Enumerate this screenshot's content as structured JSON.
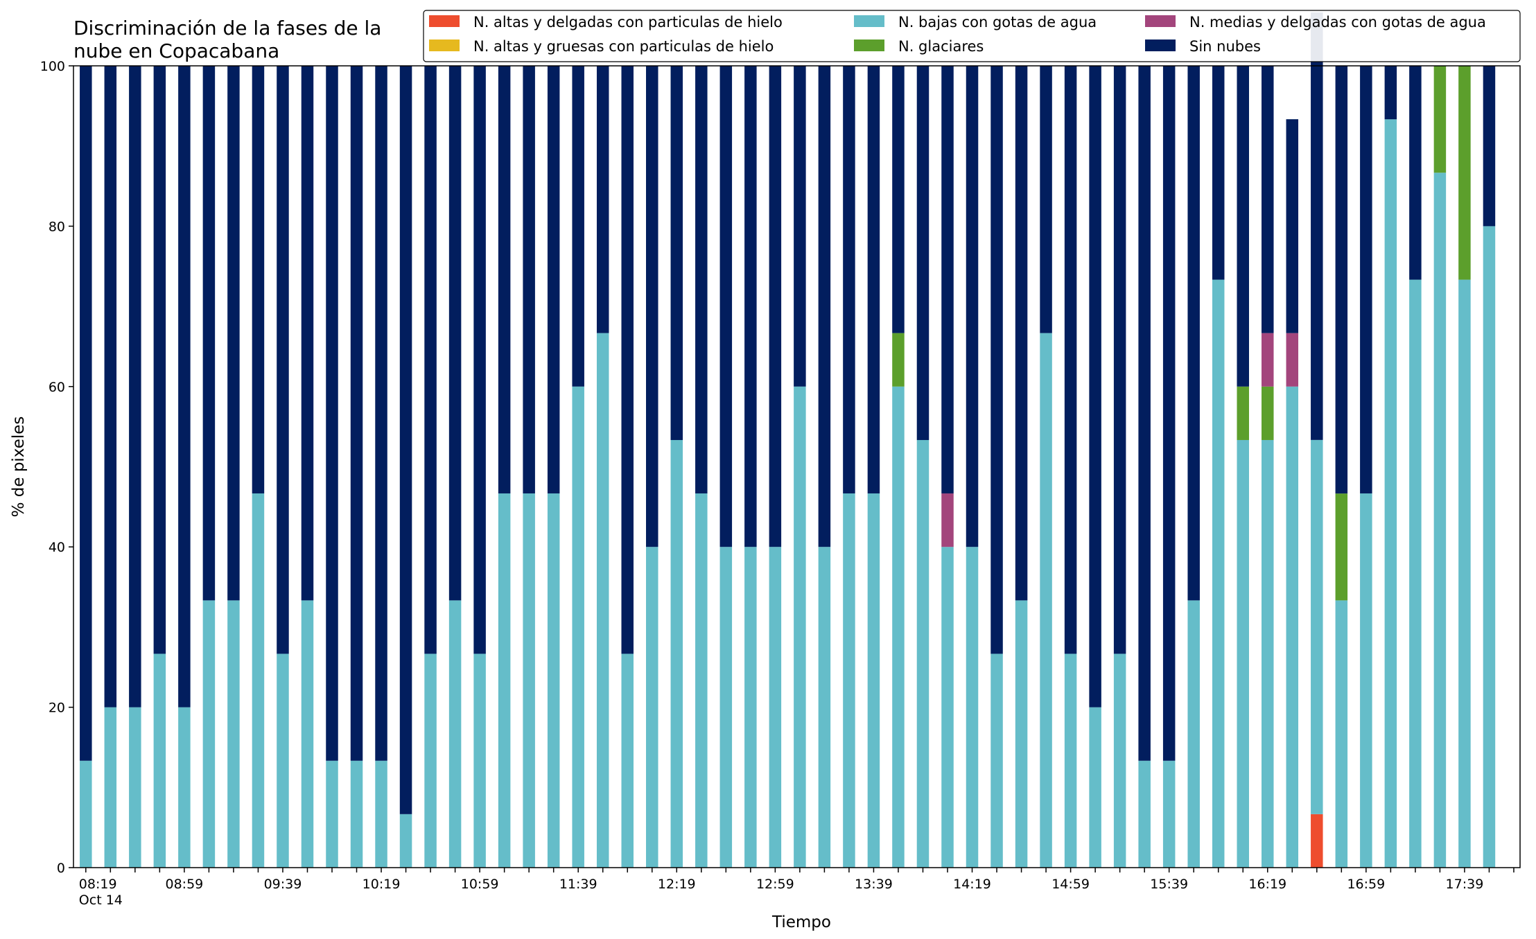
{
  "chart_data": {
    "type": "bar",
    "stacked": true,
    "title": "Discriminación de la fases de la\nnube en Copacabana",
    "xlabel": "Tiempo",
    "ylabel": "% de pixeles",
    "ylim": [
      0,
      100
    ],
    "yticks": [
      0,
      20,
      40,
      60,
      80,
      100
    ],
    "grid": false,
    "legend_position": "top-right",
    "x_start": "08:19",
    "x_step_minutes": 10,
    "x_count": 58,
    "x_tick_labels": [
      "08:19\nOct 14",
      "08:59",
      "09:39",
      "10:19",
      "10:59",
      "11:39",
      "12:19",
      "12:59",
      "13:39",
      "14:19",
      "14:59",
      "15:39",
      "16:19",
      "16:59",
      "17:39"
    ],
    "x_tick_label_every": 4,
    "series": [
      {
        "name": "N. altas y delgadas con particulas de hielo",
        "color": "#ee4d2e",
        "values": [
          0,
          0,
          0,
          0,
          0,
          0,
          0,
          0,
          0,
          0,
          0,
          0,
          0,
          0,
          0,
          0,
          0,
          0,
          0,
          0,
          0,
          0,
          0,
          0,
          0,
          0,
          0,
          0,
          0,
          0,
          0,
          0,
          0,
          0,
          0,
          0,
          0,
          0,
          0,
          0,
          0,
          0,
          0,
          0,
          0,
          0,
          0,
          0,
          0,
          0,
          6.67,
          0,
          0,
          0,
          0,
          0,
          0,
          0
        ]
      },
      {
        "name": "N. altas y gruesas con particulas de hielo",
        "color": "#e6b91f",
        "values": [
          0,
          0,
          0,
          0,
          0,
          0,
          0,
          0,
          0,
          0,
          0,
          0,
          0,
          0,
          0,
          0,
          0,
          0,
          0,
          0,
          0,
          0,
          0,
          0,
          0,
          0,
          0,
          0,
          0,
          0,
          0,
          0,
          0,
          0,
          0,
          0,
          0,
          0,
          0,
          0,
          0,
          0,
          0,
          0,
          0,
          0,
          0,
          0,
          0,
          0,
          0,
          0,
          0,
          0,
          0,
          0,
          0,
          0
        ]
      },
      {
        "name": "N. bajas con gotas de agua",
        "color": "#65bdc9",
        "values": [
          13.33,
          20,
          20,
          26.67,
          20,
          33.33,
          33.33,
          46.67,
          26.67,
          33.33,
          13.33,
          13.33,
          13.33,
          6.67,
          26.67,
          33.33,
          26.67,
          46.67,
          46.67,
          46.67,
          60,
          66.67,
          26.67,
          40,
          53.33,
          46.67,
          40,
          40,
          40,
          60,
          40,
          46.67,
          46.67,
          60,
          53.33,
          40,
          40,
          26.67,
          33.33,
          66.67,
          26.67,
          20,
          26.67,
          13.33,
          13.33,
          33.33,
          73.33,
          53.33,
          53.33,
          60,
          46.67,
          33.33,
          46.67,
          93.33,
          73.33,
          86.67,
          73.33,
          80
        ]
      },
      {
        "name": "N. glaciares",
        "color": "#5c9f2c",
        "values": [
          0,
          0,
          0,
          0,
          0,
          0,
          0,
          0,
          0,
          0,
          0,
          0,
          0,
          0,
          0,
          0,
          0,
          0,
          0,
          0,
          0,
          0,
          0,
          0,
          0,
          0,
          0,
          0,
          0,
          0,
          0,
          0,
          0,
          6.67,
          0,
          0,
          0,
          0,
          0,
          0,
          0,
          0,
          0,
          0,
          0,
          0,
          0,
          6.67,
          6.67,
          0,
          0,
          13.33,
          0,
          0,
          0,
          13.33,
          26.67,
          0
        ]
      },
      {
        "name": "N. medias y delgadas con gotas de agua",
        "color": "#a3457c",
        "values": [
          0,
          0,
          0,
          0,
          0,
          0,
          0,
          0,
          0,
          0,
          0,
          0,
          0,
          0,
          0,
          0,
          0,
          0,
          0,
          0,
          0,
          0,
          0,
          0,
          0,
          0,
          0,
          0,
          0,
          0,
          0,
          0,
          0,
          0,
          0,
          6.67,
          0,
          0,
          0,
          0,
          0,
          0,
          0,
          0,
          0,
          0,
          0,
          0,
          6.67,
          6.67,
          0,
          0,
          0,
          0,
          0,
          0,
          0,
          0
        ]
      },
      {
        "name": "Sin nubes",
        "color": "#021e5e",
        "values": [
          86.67,
          80,
          80,
          73.33,
          80,
          66.67,
          66.67,
          53.33,
          73.33,
          66.67,
          86.67,
          86.67,
          86.67,
          93.33,
          73.33,
          66.67,
          73.33,
          53.33,
          53.33,
          53.33,
          40,
          33.33,
          73.33,
          60,
          46.67,
          53.33,
          60,
          60,
          60,
          40,
          60,
          53.33,
          53.33,
          33.33,
          46.67,
          53.33,
          60,
          73.33,
          66.67,
          33.33,
          73.33,
          80,
          73.33,
          86.67,
          86.67,
          66.67,
          26.67,
          40,
          33.33,
          26.67,
          53.33,
          53.33,
          53.33,
          6.67,
          26.67,
          0,
          0,
          20
        ]
      }
    ]
  }
}
